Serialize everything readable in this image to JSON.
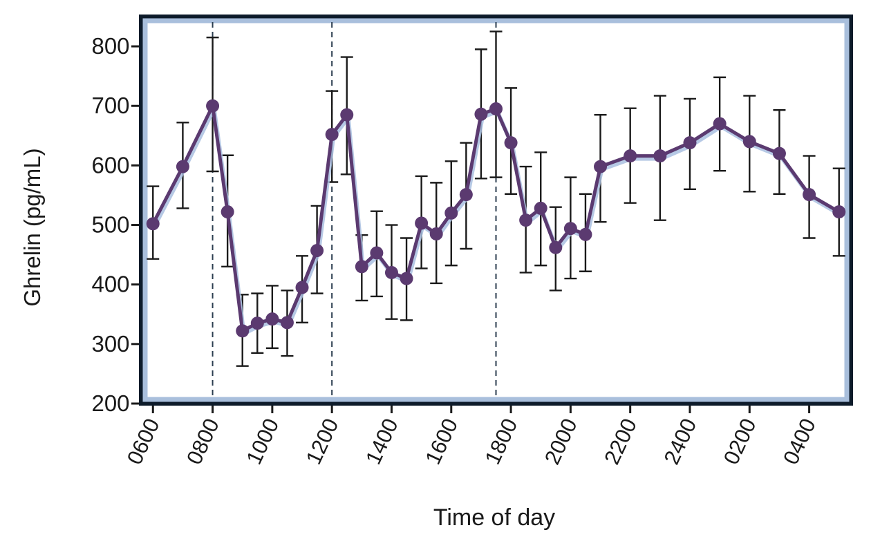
{
  "chart_data": {
    "type": "line",
    "title": "",
    "xlabel": "Time of day",
    "ylabel": "Ghrelin (pg/mL)",
    "ylim": [
      200,
      850
    ],
    "yticks": [
      200,
      300,
      400,
      500,
      600,
      700,
      800
    ],
    "xticks": [
      {
        "hour": 6,
        "label": "0600"
      },
      {
        "hour": 8,
        "label": "0800"
      },
      {
        "hour": 10,
        "label": "1000"
      },
      {
        "hour": 12,
        "label": "1200"
      },
      {
        "hour": 14,
        "label": "1400"
      },
      {
        "hour": 16,
        "label": "1600"
      },
      {
        "hour": 18,
        "label": "1800"
      },
      {
        "hour": 20,
        "label": "2000"
      },
      {
        "hour": 22,
        "label": "2200"
      },
      {
        "hour": 24,
        "label": "2400"
      },
      {
        "hour": 26,
        "label": "0200"
      },
      {
        "hour": 28,
        "label": "0400"
      }
    ],
    "xlim": [
      5.6,
      29.4
    ],
    "meal_times": [
      8,
      12,
      17.5
    ],
    "colors": {
      "frame": "#0d1b2a",
      "frame_inner": "#a9bfdc",
      "series": "#5b3a70",
      "series_shadow": "#a9bfe0",
      "error_bar": "#1a1a1a",
      "meal_line": "#2b3d4f"
    },
    "series": [
      {
        "name": "Ghrelin",
        "points": [
          {
            "t": 6.0,
            "y": 502,
            "lo": 443,
            "hi": 565
          },
          {
            "t": 7.0,
            "y": 598,
            "lo": 528,
            "hi": 672
          },
          {
            "t": 8.0,
            "y": 700,
            "lo": 590,
            "hi": 815
          },
          {
            "t": 8.5,
            "y": 522,
            "lo": 430,
            "hi": 617
          },
          {
            "t": 9.0,
            "y": 322,
            "lo": 263,
            "hi": 383
          },
          {
            "t": 9.5,
            "y": 335,
            "lo": 285,
            "hi": 385
          },
          {
            "t": 10.0,
            "y": 342,
            "lo": 293,
            "hi": 398
          },
          {
            "t": 10.5,
            "y": 336,
            "lo": 280,
            "hi": 390
          },
          {
            "t": 11.0,
            "y": 395,
            "lo": 336,
            "hi": 448
          },
          {
            "t": 11.5,
            "y": 457,
            "lo": 385,
            "hi": 532
          },
          {
            "t": 12.0,
            "y": 652,
            "lo": 572,
            "hi": 725
          },
          {
            "t": 12.5,
            "y": 685,
            "lo": 585,
            "hi": 782
          },
          {
            "t": 13.0,
            "y": 430,
            "lo": 373,
            "hi": 483
          },
          {
            "t": 13.5,
            "y": 453,
            "lo": 380,
            "hi": 523
          },
          {
            "t": 14.0,
            "y": 420,
            "lo": 342,
            "hi": 500
          },
          {
            "t": 14.5,
            "y": 410,
            "lo": 340,
            "hi": 478
          },
          {
            "t": 15.0,
            "y": 503,
            "lo": 427,
            "hi": 582
          },
          {
            "t": 15.5,
            "y": 485,
            "lo": 402,
            "hi": 571
          },
          {
            "t": 16.0,
            "y": 520,
            "lo": 432,
            "hi": 607
          },
          {
            "t": 16.5,
            "y": 551,
            "lo": 460,
            "hi": 638
          },
          {
            "t": 17.0,
            "y": 686,
            "lo": 578,
            "hi": 795
          },
          {
            "t": 17.5,
            "y": 695,
            "lo": 580,
            "hi": 825
          },
          {
            "t": 18.0,
            "y": 638,
            "lo": 552,
            "hi": 730
          },
          {
            "t": 18.5,
            "y": 508,
            "lo": 420,
            "hi": 598
          },
          {
            "t": 19.0,
            "y": 528,
            "lo": 432,
            "hi": 622
          },
          {
            "t": 19.5,
            "y": 462,
            "lo": 390,
            "hi": 530
          },
          {
            "t": 20.0,
            "y": 494,
            "lo": 410,
            "hi": 580
          },
          {
            "t": 20.5,
            "y": 484,
            "lo": 422,
            "hi": 552
          },
          {
            "t": 21.0,
            "y": 598,
            "lo": 505,
            "hi": 685
          },
          {
            "t": 22.0,
            "y": 616,
            "lo": 537,
            "hi": 696
          },
          {
            "t": 23.0,
            "y": 616,
            "lo": 508,
            "hi": 717
          },
          {
            "t": 24.0,
            "y": 638,
            "lo": 560,
            "hi": 712
          },
          {
            "t": 25.0,
            "y": 670,
            "lo": 591,
            "hi": 748
          },
          {
            "t": 26.0,
            "y": 640,
            "lo": 556,
            "hi": 717
          },
          {
            "t": 27.0,
            "y": 620,
            "lo": 552,
            "hi": 693
          },
          {
            "t": 28.0,
            "y": 551,
            "lo": 478,
            "hi": 616
          },
          {
            "t": 29.0,
            "y": 522,
            "lo": 448,
            "hi": 595
          }
        ]
      }
    ]
  }
}
